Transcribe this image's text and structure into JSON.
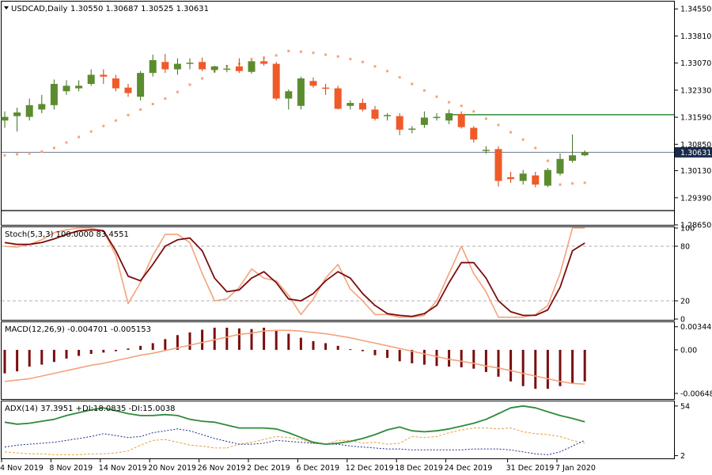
{
  "header": {
    "symbol": "USDCAD,Daily",
    "ohlc": "1.30550 1.30687 1.30525 1.30631"
  },
  "colors": {
    "bull": "#5b8c2f",
    "bear": "#f05a28",
    "sar": "#f4a37c",
    "resistance": "#2e8b3a",
    "price_line": "#6c7a89",
    "price_tag_bg": "#1a2b4c",
    "stoch_main": "#f4a37c",
    "stoch_signal": "#7b0d0d",
    "macd_hist": "#7b0d0d",
    "macd_signal": "#f4a37c",
    "adx": "#2e8b3a",
    "plus_di": "#1a2b8c",
    "minus_di": "#e8a040"
  },
  "x_labels": [
    "4 Nov 2019",
    "8 Nov 2019",
    "14 Nov 2019",
    "20 Nov 2019",
    "26 Nov 2019",
    "2 Dec 2019",
    "6 Dec 2019",
    "12 Dec 2019",
    "18 Dec 2019",
    "24 Dec 2019",
    "31 Dec 2019",
    "7 Jan 2020"
  ],
  "chart_data": [
    {
      "type": "candlestick",
      "panel": "price",
      "y_ticks": [
        "1.34550",
        "1.33810",
        "1.33070",
        "1.32330",
        "1.31590",
        "1.30850",
        "1.30130",
        "1.29390",
        "1.28650"
      ],
      "ylim": [
        1.2865,
        1.3475
      ],
      "current_price_label": "1.30631",
      "current_price": 1.30631,
      "resistance_level": 1.3166,
      "ohlc": [
        [
          1.315,
          1.3175,
          1.313,
          1.316
        ],
        [
          1.3162,
          1.3185,
          1.312,
          1.3172
        ],
        [
          1.316,
          1.321,
          1.315,
          1.3192
        ],
        [
          1.318,
          1.322,
          1.317,
          1.3195
        ],
        [
          1.3192,
          1.3262,
          1.318,
          1.325
        ],
        [
          1.323,
          1.326,
          1.322,
          1.3245
        ],
        [
          1.3238,
          1.326,
          1.323,
          1.3245
        ],
        [
          1.325,
          1.329,
          1.3245,
          1.3275
        ],
        [
          1.3275,
          1.329,
          1.325,
          1.327
        ],
        [
          1.3265,
          1.3275,
          1.323,
          1.3238
        ],
        [
          1.324,
          1.325,
          1.3215,
          1.3225
        ],
        [
          1.3215,
          1.3285,
          1.3205,
          1.328
        ],
        [
          1.328,
          1.333,
          1.327,
          1.3315
        ],
        [
          1.331,
          1.3332,
          1.328,
          1.329
        ],
        [
          1.329,
          1.332,
          1.3275,
          1.3305
        ],
        [
          1.3305,
          1.332,
          1.329,
          1.3308
        ],
        [
          1.331,
          1.3322,
          1.3285,
          1.329
        ],
        [
          1.3288,
          1.33,
          1.328,
          1.3298
        ],
        [
          1.3292,
          1.3302,
          1.3282,
          1.3292
        ],
        [
          1.3298,
          1.332,
          1.328,
          1.3285
        ],
        [
          1.3283,
          1.3315,
          1.3278,
          1.3312
        ],
        [
          1.3312,
          1.332,
          1.33,
          1.3305
        ],
        [
          1.3305,
          1.331,
          1.3205,
          1.321
        ],
        [
          1.321,
          1.3235,
          1.318,
          1.323
        ],
        [
          1.319,
          1.327,
          1.318,
          1.3265
        ],
        [
          1.3258,
          1.3268,
          1.324,
          1.3245
        ],
        [
          1.324,
          1.325,
          1.322,
          1.3238
        ],
        [
          1.3238,
          1.3245,
          1.318,
          1.3182
        ],
        [
          1.319,
          1.3205,
          1.318,
          1.3198
        ],
        [
          1.3198,
          1.321,
          1.3175,
          1.318
        ],
        [
          1.318,
          1.319,
          1.315,
          1.3155
        ],
        [
          1.3164,
          1.317,
          1.315,
          1.3165
        ],
        [
          1.3162,
          1.317,
          1.311,
          1.3125
        ],
        [
          1.3125,
          1.3135,
          1.3115,
          1.3128
        ],
        [
          1.3138,
          1.3175,
          1.313,
          1.3158
        ],
        [
          1.316,
          1.317,
          1.315,
          1.316
        ],
        [
          1.315,
          1.318,
          1.314,
          1.317
        ],
        [
          1.3168,
          1.3175,
          1.3128,
          1.3132
        ],
        [
          1.313,
          1.3135,
          1.309,
          1.3098
        ],
        [
          1.3068,
          1.308,
          1.306,
          1.307
        ],
        [
          1.3072,
          1.308,
          1.297,
          1.2985
        ],
        [
          1.2995,
          1.301,
          1.298,
          1.299
        ],
        [
          1.2985,
          1.3015,
          1.2975,
          1.3005
        ],
        [
          1.3,
          1.301,
          1.2968,
          1.2975
        ],
        [
          1.2972,
          1.302,
          1.2968,
          1.3015
        ],
        [
          1.3005,
          1.306,
          1.3,
          1.3045
        ],
        [
          1.304,
          1.3112,
          1.3035,
          1.3055
        ],
        [
          1.3055,
          1.30687,
          1.30525,
          1.30631
        ]
      ],
      "sar": [
        1.3055,
        1.3058,
        1.306,
        1.3065,
        1.3075,
        1.309,
        1.3105,
        1.312,
        1.3135,
        1.315,
        1.3165,
        1.318,
        1.3195,
        1.321,
        1.3228,
        1.3248,
        1.3265,
        1.3285,
        1.3298,
        1.3305,
        1.3318,
        1.3322,
        1.3328,
        1.334,
        1.3338,
        1.3335,
        1.333,
        1.3325,
        1.3318,
        1.331,
        1.3298,
        1.3285,
        1.3268,
        1.325,
        1.3232,
        1.3215,
        1.32,
        1.319,
        1.3175,
        1.3155,
        1.3138,
        1.3118,
        1.3098,
        1.3075,
        1.304,
        1.2975,
        1.2978,
        1.298
      ]
    },
    {
      "type": "line",
      "panel": "stochastic",
      "title": "Stoch(5,3,3) 100.0000 83.4551",
      "y_ticks": [
        "100",
        "80",
        "20",
        "0"
      ],
      "ylim": [
        0,
        100
      ],
      "levels": [
        80,
        20
      ],
      "series": [
        {
          "name": "main",
          "values": [
            80,
            79,
            82,
            87,
            95,
            98,
            100,
            100,
            97,
            70,
            17,
            40,
            70,
            93,
            93,
            84,
            50,
            20,
            22,
            35,
            55,
            45,
            42,
            26,
            5,
            22,
            45,
            60,
            33,
            20,
            5,
            5,
            2,
            2,
            4,
            20,
            50,
            80,
            50,
            30,
            2,
            2,
            2,
            5,
            15,
            50,
            100,
            100
          ]
        },
        {
          "name": "signal",
          "values": [
            84,
            82,
            82,
            84,
            88,
            93,
            97,
            98,
            97,
            75,
            47,
            42,
            60,
            80,
            87,
            89,
            75,
            45,
            30,
            32,
            45,
            52,
            40,
            22,
            20,
            28,
            42,
            52,
            45,
            28,
            15,
            6,
            4,
            3,
            6,
            15,
            40,
            62,
            62,
            45,
            20,
            8,
            4,
            4,
            10,
            35,
            75,
            83.4551
          ]
        }
      ]
    },
    {
      "type": "bar",
      "panel": "macd",
      "title": "MACD(12,26,9) -0.004701 -0.005153",
      "y_ticks": [
        "0.003441",
        "0.00",
        "-0.006485"
      ],
      "ylim": [
        -0.0072,
        0.004
      ],
      "series": [
        {
          "name": "histogram",
          "values": [
            -0.0035,
            -0.0032,
            -0.0025,
            -0.0022,
            -0.0018,
            -0.0013,
            -0.0009,
            -0.0006,
            -0.0004,
            -0.0002,
            0.0002,
            0.0006,
            0.001,
            0.0016,
            0.0022,
            0.0026,
            0.003,
            0.0033,
            0.0033,
            0.0032,
            0.0031,
            0.0033,
            0.0029,
            0.0024,
            0.0018,
            0.0013,
            0.001,
            0.0006,
            0.0001,
            -0.0002,
            -0.0008,
            -0.0012,
            -0.0017,
            -0.002,
            -0.0022,
            -0.0024,
            -0.0025,
            -0.0026,
            -0.0028,
            -0.0033,
            -0.004,
            -0.0047,
            -0.0054,
            -0.0058,
            -0.0058,
            -0.0054,
            -0.005,
            -0.0047
          ]
        },
        {
          "name": "signal",
          "values": [
            -0.0047,
            -0.0045,
            -0.0043,
            -0.0039,
            -0.0035,
            -0.0031,
            -0.0027,
            -0.0023,
            -0.002,
            -0.0016,
            -0.0012,
            -0.0008,
            -0.0005,
            -0.0001,
            0.0003,
            0.0007,
            0.0011,
            0.0015,
            0.0019,
            0.0023,
            0.0025,
            0.0028,
            0.0029,
            0.0029,
            0.0028,
            0.0026,
            0.0024,
            0.0021,
            0.0018,
            0.0014,
            0.001,
            0.0006,
            0.0002,
            -0.0002,
            -0.0006,
            -0.001,
            -0.0014,
            -0.0017,
            -0.002,
            -0.0024,
            -0.0027,
            -0.0031,
            -0.0035,
            -0.0039,
            -0.0043,
            -0.0047,
            -0.005,
            -0.0051
          ]
        }
      ]
    },
    {
      "type": "line",
      "panel": "adx",
      "title": "ADX(14) 37.3951 +DI:18.0835 -DI:15.0038",
      "y_ticks": [
        "54",
        "2"
      ],
      "ylim": [
        0,
        58
      ],
      "series": [
        {
          "name": "ADX",
          "values": [
            37,
            35,
            36,
            38,
            40,
            44,
            47,
            50,
            52,
            49,
            46,
            44,
            44,
            45,
            44,
            40,
            38,
            37,
            34,
            31,
            31,
            31,
            30,
            26,
            21,
            16,
            14,
            15,
            17,
            20,
            24,
            29,
            32,
            28,
            27,
            28,
            30,
            33,
            36,
            40,
            46,
            52,
            54,
            52,
            48,
            44,
            41,
            37.3951
          ]
        },
        {
          "name": "+DI",
          "values": [
            11,
            13,
            14,
            15,
            16,
            18,
            20,
            22,
            25,
            23,
            21,
            22,
            26,
            28,
            30,
            28,
            24,
            20,
            17,
            14,
            14,
            15,
            18,
            17,
            16,
            15,
            14,
            14,
            12,
            11,
            10,
            9,
            9,
            8,
            8,
            8,
            8,
            8,
            9,
            9,
            9,
            8,
            6,
            4,
            3,
            6,
            12,
            18.0835
          ]
        },
        {
          "name": "-DI",
          "values": [
            6,
            5,
            4,
            4,
            3,
            3,
            3,
            4,
            4,
            5,
            7,
            13,
            18,
            19,
            16,
            13,
            12,
            10,
            10,
            14,
            16,
            19,
            22,
            21,
            19,
            15,
            14,
            18,
            18,
            15,
            16,
            14,
            15,
            22,
            21,
            22,
            26,
            29,
            31,
            31,
            30,
            31,
            27,
            25,
            24,
            22,
            18,
            15.0038
          ]
        }
      ]
    }
  ]
}
